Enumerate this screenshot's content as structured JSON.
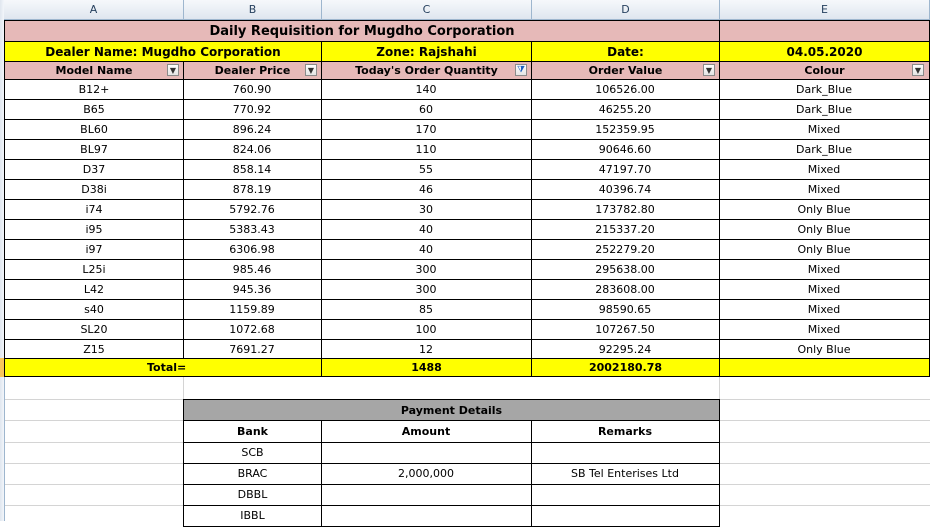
{
  "columns": [
    "A",
    "B",
    "C",
    "D",
    "E"
  ],
  "title": "Daily Requisition for Mugdho Corporation",
  "info": {
    "dealer": "Dealer Name:  Mugdho Corporation",
    "zone": "Zone: Rajshahi",
    "date_label": "Date:",
    "date_value": "04.05.2020"
  },
  "headers": {
    "model": "Model Name",
    "price": "Dealer Price",
    "qty": "Today's Order Quantity",
    "value": "Order Value",
    "colour": "Colour"
  },
  "rows": [
    {
      "model": "B12+",
      "price": "760.90",
      "qty": "140",
      "value": "106526.00",
      "colour": "Dark_Blue"
    },
    {
      "model": "B65",
      "price": "770.92",
      "qty": "60",
      "value": "46255.20",
      "colour": "Dark_Blue"
    },
    {
      "model": "BL60",
      "price": "896.24",
      "qty": "170",
      "value": "152359.95",
      "colour": "Mixed"
    },
    {
      "model": "BL97",
      "price": "824.06",
      "qty": "110",
      "value": "90646.60",
      "colour": "Dark_Blue"
    },
    {
      "model": "D37",
      "price": "858.14",
      "qty": "55",
      "value": "47197.70",
      "colour": "Mixed"
    },
    {
      "model": "D38i",
      "price": "878.19",
      "qty": "46",
      "value": "40396.74",
      "colour": "Mixed"
    },
    {
      "model": "i74",
      "price": "5792.76",
      "qty": "30",
      "value": "173782.80",
      "colour": "Only Blue"
    },
    {
      "model": "i95",
      "price": "5383.43",
      "qty": "40",
      "value": "215337.20",
      "colour": "Only Blue"
    },
    {
      "model": "i97",
      "price": "6306.98",
      "qty": "40",
      "value": "252279.20",
      "colour": "Only Blue"
    },
    {
      "model": "L25i",
      "price": "985.46",
      "qty": "300",
      "value": "295638.00",
      "colour": "Mixed"
    },
    {
      "model": "L42",
      "price": "945.36",
      "qty": "300",
      "value": "283608.00",
      "colour": "Mixed"
    },
    {
      "model": "s40",
      "price": "1159.89",
      "qty": "85",
      "value": "98590.65",
      "colour": "Mixed"
    },
    {
      "model": "SL20",
      "price": "1072.68",
      "qty": "100",
      "value": "107267.50",
      "colour": "Mixed"
    },
    {
      "model": "Z15",
      "price": "7691.27",
      "qty": "12",
      "value": "92295.24",
      "colour": "Only Blue"
    }
  ],
  "total": {
    "label": "Total=",
    "qty": "1488",
    "value": "2002180.78"
  },
  "payment": {
    "title": "Payment Details",
    "headers": {
      "bank": "Bank",
      "amount": "Amount",
      "remarks": "Remarks"
    },
    "rows": [
      {
        "bank": "SCB",
        "amount": "",
        "remarks": ""
      },
      {
        "bank": "BRAC",
        "amount": "2,000,000",
        "remarks": "SB Tel Enterises Ltd"
      },
      {
        "bank": "DBBL",
        "amount": "",
        "remarks": ""
      },
      {
        "bank": "IBBL",
        "amount": "",
        "remarks": ""
      }
    ]
  },
  "icons": {
    "dropdown": "dropdown-arrow-icon",
    "filter": "filter-icon"
  }
}
